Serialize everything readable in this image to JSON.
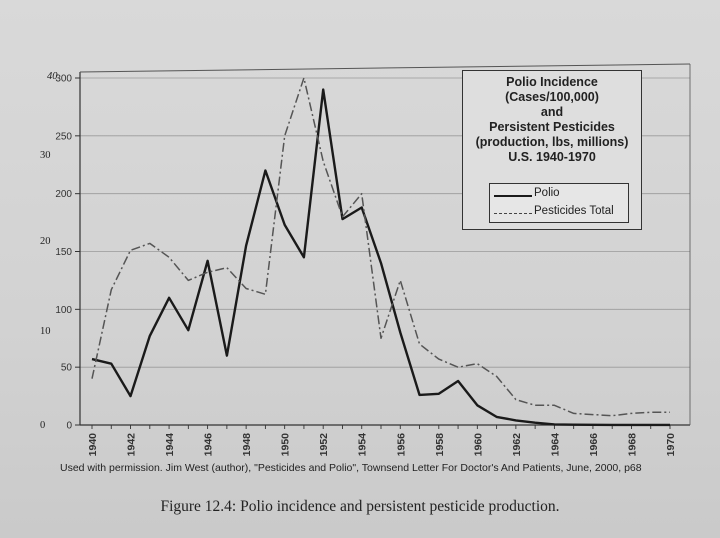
{
  "chart_data": {
    "type": "line",
    "title_lines": [
      "Polio Incidence",
      "(Cases/100,000)",
      "and",
      "Persistent Pesticides",
      "(production, lbs, millions)",
      "U.S.  1940-1970"
    ],
    "x": [
      1940,
      1941,
      1942,
      1943,
      1944,
      1945,
      1946,
      1947,
      1948,
      1949,
      1950,
      1951,
      1952,
      1953,
      1954,
      1955,
      1956,
      1957,
      1958,
      1959,
      1960,
      1961,
      1962,
      1963,
      1964,
      1965,
      1966,
      1967,
      1968,
      1969,
      1970
    ],
    "x_tick_labels": [
      "1940",
      "1942",
      "1944",
      "1946",
      "1948",
      "1950",
      "1952",
      "1954",
      "1956",
      "1958",
      "1960",
      "1962",
      "1964",
      "1966",
      "1968",
      "1970"
    ],
    "ylim": [
      0,
      300
    ],
    "y_ticks_left": [
      "0",
      "50",
      "100",
      "150",
      "200",
      "250",
      "300"
    ],
    "outer_axis_ticks": [
      "0",
      "10",
      "20",
      "30",
      "40"
    ],
    "series": [
      {
        "name": "Polio",
        "style": "solid",
        "values": [
          57,
          53,
          25,
          77,
          110,
          82,
          142,
          60,
          155,
          220,
          173,
          145,
          290,
          178,
          188,
          140,
          80,
          26,
          27,
          38,
          17,
          7,
          4,
          2,
          0.5,
          0.3,
          0.2,
          0.1,
          0.1,
          0.1,
          0.1
        ]
      },
      {
        "name": "Pesticides Total",
        "style": "dashed",
        "values": [
          40,
          117,
          151,
          157,
          145,
          125,
          132,
          136,
          118,
          113,
          250,
          300,
          228,
          180,
          200,
          75,
          125,
          70,
          57,
          50,
          53,
          42,
          22,
          17,
          17,
          10,
          9,
          8,
          10,
          11,
          11
        ]
      }
    ],
    "legend_position": "top-right"
  },
  "credit": "Used with permission.  Jim West (author), \"Pesticides and Polio\", Townsend Letter For Doctor's And Patients, June, 2000, p68",
  "caption": "Figure 12.4: Polio incidence and persistent pesticide production.",
  "colors": {
    "polio": "#1a1a1a",
    "pesticides": "#555555",
    "grid": "#9a9a9a"
  }
}
